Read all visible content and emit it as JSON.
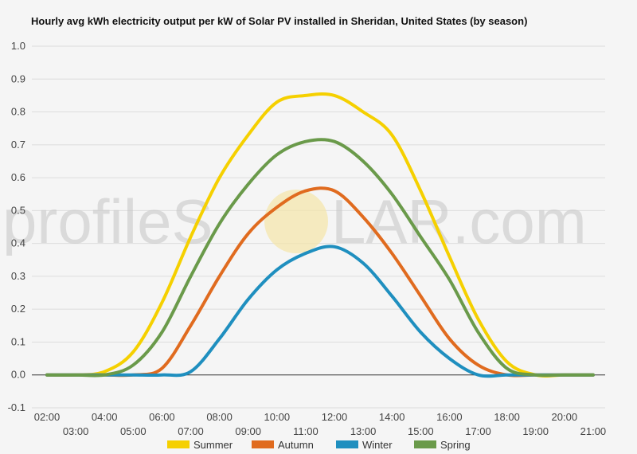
{
  "chart_data": {
    "type": "line",
    "title": "Hourly avg kWh electricity output per kW of Solar PV installed in Sheridan, United States (by season)",
    "xlabel": "",
    "ylabel": "",
    "ylim": [
      -0.1,
      1.0
    ],
    "yticks": [
      "1.0",
      "0.9",
      "0.8",
      "0.7",
      "0.6",
      "0.5",
      "0.4",
      "0.3",
      "0.2",
      "0.1",
      "0.0",
      "-0.1"
    ],
    "x": [
      "02:00",
      "03:00",
      "04:00",
      "05:00",
      "06:00",
      "07:00",
      "08:00",
      "09:00",
      "10:00",
      "11:00",
      "12:00",
      "13:00",
      "14:00",
      "15:00",
      "16:00",
      "17:00",
      "18:00",
      "19:00",
      "20:00",
      "21:00"
    ],
    "grid": true,
    "legend_position": "bottom",
    "series": [
      {
        "name": "Summer",
        "color": "#f5d000",
        "values": [
          0,
          0,
          0.01,
          0.07,
          0.22,
          0.42,
          0.6,
          0.73,
          0.83,
          0.85,
          0.85,
          0.8,
          0.73,
          0.56,
          0.36,
          0.17,
          0.04,
          0,
          0,
          0
        ]
      },
      {
        "name": "Autumn",
        "color": "#e06b1f",
        "values": [
          0,
          0,
          0,
          0,
          0.02,
          0.15,
          0.3,
          0.43,
          0.51,
          0.56,
          0.56,
          0.48,
          0.37,
          0.24,
          0.11,
          0.03,
          0,
          0,
          0,
          0
        ]
      },
      {
        "name": "Winter",
        "color": "#1f8fbf",
        "values": [
          0,
          0,
          0,
          0,
          0,
          0.01,
          0.11,
          0.23,
          0.32,
          0.37,
          0.39,
          0.34,
          0.24,
          0.13,
          0.05,
          0,
          0,
          0,
          0,
          0
        ]
      },
      {
        "name": "Spring",
        "color": "#6a9a4a",
        "values": [
          0,
          0,
          0,
          0.03,
          0.13,
          0.3,
          0.46,
          0.58,
          0.67,
          0.71,
          0.71,
          0.65,
          0.55,
          0.42,
          0.29,
          0.13,
          0.02,
          0,
          0,
          0
        ]
      }
    ]
  },
  "watermark": {
    "left": "profileS",
    "right": "LAR.com"
  }
}
